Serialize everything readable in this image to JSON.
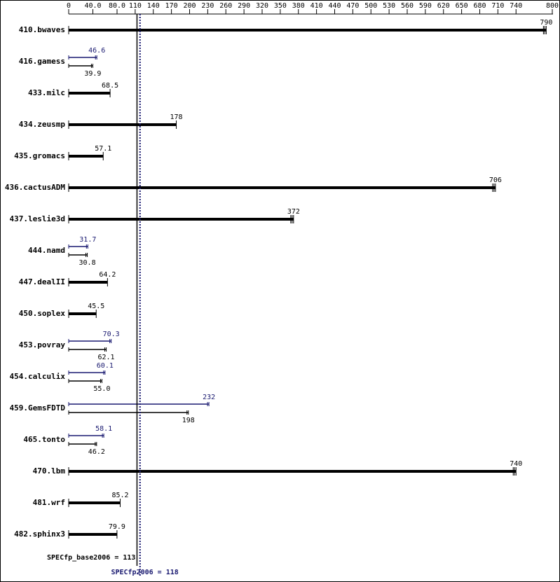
{
  "chart_data": {
    "type": "hbar",
    "categories": [
      "410.bwaves",
      "416.gamess",
      "433.milc",
      "434.zeusmp",
      "435.gromacs",
      "436.cactusADM",
      "437.leslie3d",
      "444.namd",
      "447.dealII",
      "450.soplex",
      "453.povray",
      "454.calculix",
      "459.GemsFDTD",
      "465.tonto",
      "470.lbm",
      "481.wrf",
      "482.sphinx3"
    ],
    "series": [
      {
        "color": "#000000",
        "values": [
          790,
          39.9,
          68.5,
          178,
          57.1,
          706,
          372,
          30.8,
          64.2,
          45.5,
          62.1,
          55.0,
          198,
          46.2,
          740,
          85.2,
          79.9
        ],
        "value_labels": [
          "790",
          "39.9",
          "68.5",
          "178",
          "57.1",
          "706",
          "372",
          "30.8",
          "64.2",
          "45.5",
          "62.1",
          "55.0",
          "198",
          "46.2",
          "740",
          "85.2",
          "79.9"
        ]
      },
      {
        "color": "#191970",
        "values": [
          null,
          46.6,
          null,
          null,
          null,
          null,
          null,
          31.7,
          null,
          null,
          70.3,
          60.1,
          232,
          58.1,
          null,
          null,
          null
        ],
        "value_labels": [
          null,
          "46.6",
          null,
          null,
          null,
          null,
          null,
          "31.7",
          null,
          null,
          "70.3",
          "60.1",
          "232",
          "58.1",
          null,
          null,
          null
        ]
      }
    ],
    "xlim": [
      0,
      800
    ],
    "xticks": [
      0,
      {
        "value": 40,
        "label": "40.0"
      },
      {
        "value": 80,
        "label": "80.0"
      },
      110,
      140,
      170,
      200,
      230,
      260,
      290,
      320,
      350,
      380,
      410,
      440,
      470,
      500,
      530,
      560,
      590,
      620,
      650,
      680,
      710,
      740,
      800
    ],
    "reference_lines": [
      {
        "value": 113,
        "label": "SPECfp_base2006 = 113",
        "color": "#000000",
        "style": "solid"
      },
      {
        "value": 118,
        "label": "SPECfp2006 = 118",
        "color": "#191970",
        "style": "dotted"
      }
    ]
  }
}
